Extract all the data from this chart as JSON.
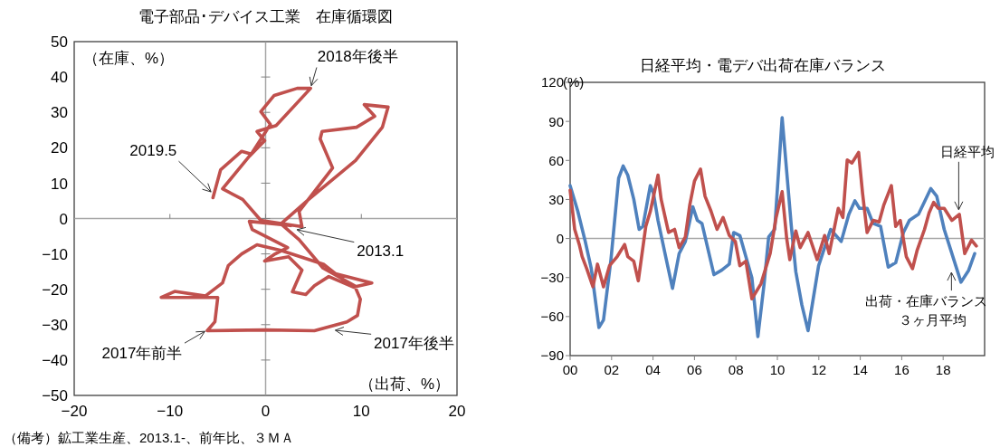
{
  "chart_data": [
    {
      "type": "line",
      "title": "電子部品･デバイス工業　在庫循環図",
      "xlabel": "（出荷、%）",
      "ylabel": "（在庫、%）",
      "xlim": [
        -20,
        20
      ],
      "ylim": [
        -50,
        50
      ],
      "xticks": [
        -20,
        -10,
        0,
        10,
        20
      ],
      "yticks": [
        -50,
        -40,
        -30,
        -20,
        -10,
        0,
        10,
        20,
        30,
        40,
        50
      ],
      "ref_lines": [
        {
          "axis": "x",
          "value": 0,
          "color": "#a6a6a6"
        },
        {
          "axis": "y",
          "value": 0,
          "color": "#a6a6a6"
        }
      ],
      "series": [
        {
          "color": "#c0504d",
          "x": [
            2.6,
            -1.7,
            -1.4,
            2.3,
            1.0,
            -0.1,
            2.4,
            3.8,
            3.2,
            2.8,
            4.2,
            5.1,
            6.6,
            9.2,
            11.1,
            7.3,
            6.1,
            1.6,
            -0.9,
            -2.5,
            -3.9,
            -4.5,
            -6.3,
            -9.5,
            -10.9,
            -5.0,
            -5.3,
            -6.1,
            0,
            5.1,
            8.5,
            9.6,
            9.9,
            9.3,
            6.0,
            3.5,
            1.6,
            4.5,
            9.4,
            12.2,
            12.8,
            10.3,
            11.4,
            9.5,
            5.9,
            5.7,
            7.0,
            3.5,
            3.8,
            -0.5,
            -2.4,
            -4.5,
            -1.7,
            -0.1,
            -0.9,
            1.1,
            4.7,
            3.3,
            0.9,
            -0.5,
            0.5,
            -1.5,
            -2.5,
            -4.7,
            -5.5
          ],
          "values": [
            -2.0,
            -0.8,
            -3.1,
            -8.2,
            -10.0,
            -12.0,
            -10.8,
            -14.6,
            -18.2,
            -20.7,
            -21.5,
            -19.0,
            -16.4,
            -19.4,
            -18.2,
            -15.6,
            -13.0,
            -9.0,
            -7.4,
            -10.0,
            -13.3,
            -18.2,
            -21.9,
            -20.6,
            -22.3,
            -22.3,
            -29.2,
            -31.7,
            -31.5,
            -31.7,
            -29.2,
            -27.4,
            -22.8,
            -19.0,
            -14.0,
            -6.0,
            -1.5,
            5.4,
            16.4,
            25.8,
            31.5,
            32.2,
            28.9,
            25.8,
            24.6,
            22.5,
            14.3,
            2.0,
            -2.3,
            -0.5,
            5.4,
            8.4,
            17.6,
            22.0,
            24.6,
            26.3,
            36.8,
            36.8,
            34.8,
            30.2,
            26.6,
            18.2,
            19.0,
            13.8,
            5.9
          ]
        }
      ],
      "annotations": [
        {
          "text": "2018年後半",
          "x": 4.7,
          "y": 36.8
        },
        {
          "text": "2019.5",
          "x": -5.5,
          "y": 7
        },
        {
          "text": "2013.1",
          "x": 3,
          "y": -3
        },
        {
          "text": "2017年前半",
          "x": -6.1,
          "y": -31.5
        },
        {
          "text": "2017年後半",
          "x": 7,
          "y": -31.5
        },
        "（備考）鉱工業生産、2013.1-、前年比、３ＭＡ"
      ]
    },
    {
      "type": "line",
      "title": "日経平均・電デバ出荷在庫バランス",
      "ylabel": "(%)",
      "xlim": [
        2000,
        2020
      ],
      "ylim": [
        -90,
        120
      ],
      "xticks": [
        {
          "value": 2000,
          "label": "00"
        },
        {
          "value": 2002,
          "label": "02"
        },
        {
          "value": 2004,
          "label": "04"
        },
        {
          "value": 2006,
          "label": "06"
        },
        {
          "value": 2008,
          "label": "08"
        },
        {
          "value": 2010,
          "label": "10"
        },
        {
          "value": 2012,
          "label": "12"
        },
        {
          "value": 2014,
          "label": "14"
        },
        {
          "value": 2016,
          "label": "16"
        },
        {
          "value": 2018,
          "label": "18"
        }
      ],
      "yticks": [
        -90,
        -60,
        -30,
        0,
        30,
        60,
        90,
        120
      ],
      "ref_lines": [
        {
          "axis": "y",
          "value": 0,
          "color": "#a6a6a6"
        }
      ],
      "series": [
        {
          "color": "#4f81bd",
          "x": [
            2000.0,
            2000.37,
            2000.73,
            2001.02,
            2001.39,
            2001.61,
            2001.97,
            2002.34,
            2002.56,
            2002.78,
            2003.07,
            2003.33,
            2003.51,
            2003.87,
            2004.02,
            2004.24,
            2004.61,
            2004.94,
            2005.26,
            2005.56,
            2005.92,
            2006.14,
            2006.36,
            2006.94,
            2007.31,
            2007.68,
            2007.89,
            2008.19,
            2008.77,
            2009.06,
            2009.36,
            2009.58,
            2009.87,
            2010.23,
            2010.67,
            2010.89,
            2011.18,
            2011.48,
            2011.99,
            2012.57,
            2013.08,
            2013.45,
            2013.74,
            2013.96,
            2014.33,
            2014.62,
            2014.98,
            2015.35,
            2015.71,
            2016.08,
            2016.37,
            2016.81,
            2017.4,
            2017.69,
            2018.05,
            2018.86,
            2019.23,
            2019.52
          ],
          "values": [
            40.6,
            20.9,
            -2.3,
            -23.2,
            -68.4,
            -62.6,
            -16.2,
            46.4,
            55.7,
            48.7,
            30.2,
            7,
            9.3,
            40.6,
            34.8,
            13.9,
            -13.9,
            -38.3,
            -11.6,
            -2.3,
            24.4,
            13.9,
            11.6,
            -27.8,
            -24.4,
            -19.7,
            4.6,
            2.3,
            -30.2,
            -75.4,
            -34.8,
            1.2,
            7,
            92.8,
            10,
            -25.5,
            -51,
            -70.8,
            -20.9,
            7,
            -2.3,
            18.6,
            29,
            23.2,
            23.2,
            11.6,
            9.3,
            -22,
            -18.6,
            4.6,
            13.9,
            18.6,
            38.3,
            32.5,
            7,
            -33.6,
            -24.4,
            -11.6
          ]
        },
        {
          "color": "#c0504d",
          "x": [
            2000.0,
            2000.22,
            2000.44,
            2000.58,
            2000.8,
            2001.1,
            2001.32,
            2001.61,
            2001.9,
            2002.27,
            2002.63,
            2002.78,
            2003.07,
            2003.29,
            2003.65,
            2003.87,
            2004.24,
            2004.39,
            2004.75,
            2005.04,
            2005.26,
            2005.56,
            2005.77,
            2006.0,
            2006.29,
            2006.51,
            2006.8,
            2007.09,
            2007.38,
            2007.68,
            2007.97,
            2008.19,
            2008.48,
            2008.77,
            2009.21,
            2009.65,
            2009.94,
            2010.23,
            2010.45,
            2010.6,
            2010.89,
            2011.1,
            2011.48,
            2011.92,
            2012.28,
            2012.5,
            2012.94,
            2013.16,
            2013.37,
            2013.6,
            2013.92,
            2014.11,
            2014.33,
            2014.62,
            2014.91,
            2015.13,
            2015.5,
            2015.71,
            2015.93,
            2016.22,
            2016.52,
            2016.74,
            2017.1,
            2017.32,
            2017.54,
            2017.76,
            2018.05,
            2018.42,
            2018.78,
            2019.04,
            2019.37,
            2019.6
          ],
          "values": [
            37.1,
            7,
            -4.6,
            -13.9,
            -23.2,
            -37.1,
            -19.7,
            -37.1,
            -20.9,
            -13.9,
            -4.6,
            -13.9,
            -17.4,
            -32.5,
            9.3,
            20.9,
            48.7,
            30.2,
            4.6,
            7,
            -7,
            1.2,
            25.5,
            44.1,
            53.4,
            32.5,
            20.9,
            7,
            16.2,
            2.3,
            -2.3,
            -20.9,
            -17.4,
            -46.4,
            -34.8,
            -11.6,
            16.2,
            36,
            0,
            -16.2,
            5.8,
            -7,
            4.6,
            -16.2,
            2.3,
            -11.6,
            23.2,
            16.2,
            60.3,
            58,
            66.1,
            34.8,
            4.6,
            13.9,
            12.8,
            25.5,
            40.6,
            9.3,
            13.9,
            -13.9,
            -23.2,
            -9.3,
            7,
            19.7,
            27.8,
            23.2,
            23.2,
            13.9,
            18.6,
            -11.6,
            -1.2,
            -5.8
          ]
        }
      ],
      "annotations": [
        {
          "text": "日経平均",
          "x": 2018.75,
          "y": 20
        },
        {
          "text": "出荷・在庫バランス",
          "x": 2018.4,
          "y": -24
        },
        "３ヶ月平均"
      ]
    }
  ]
}
